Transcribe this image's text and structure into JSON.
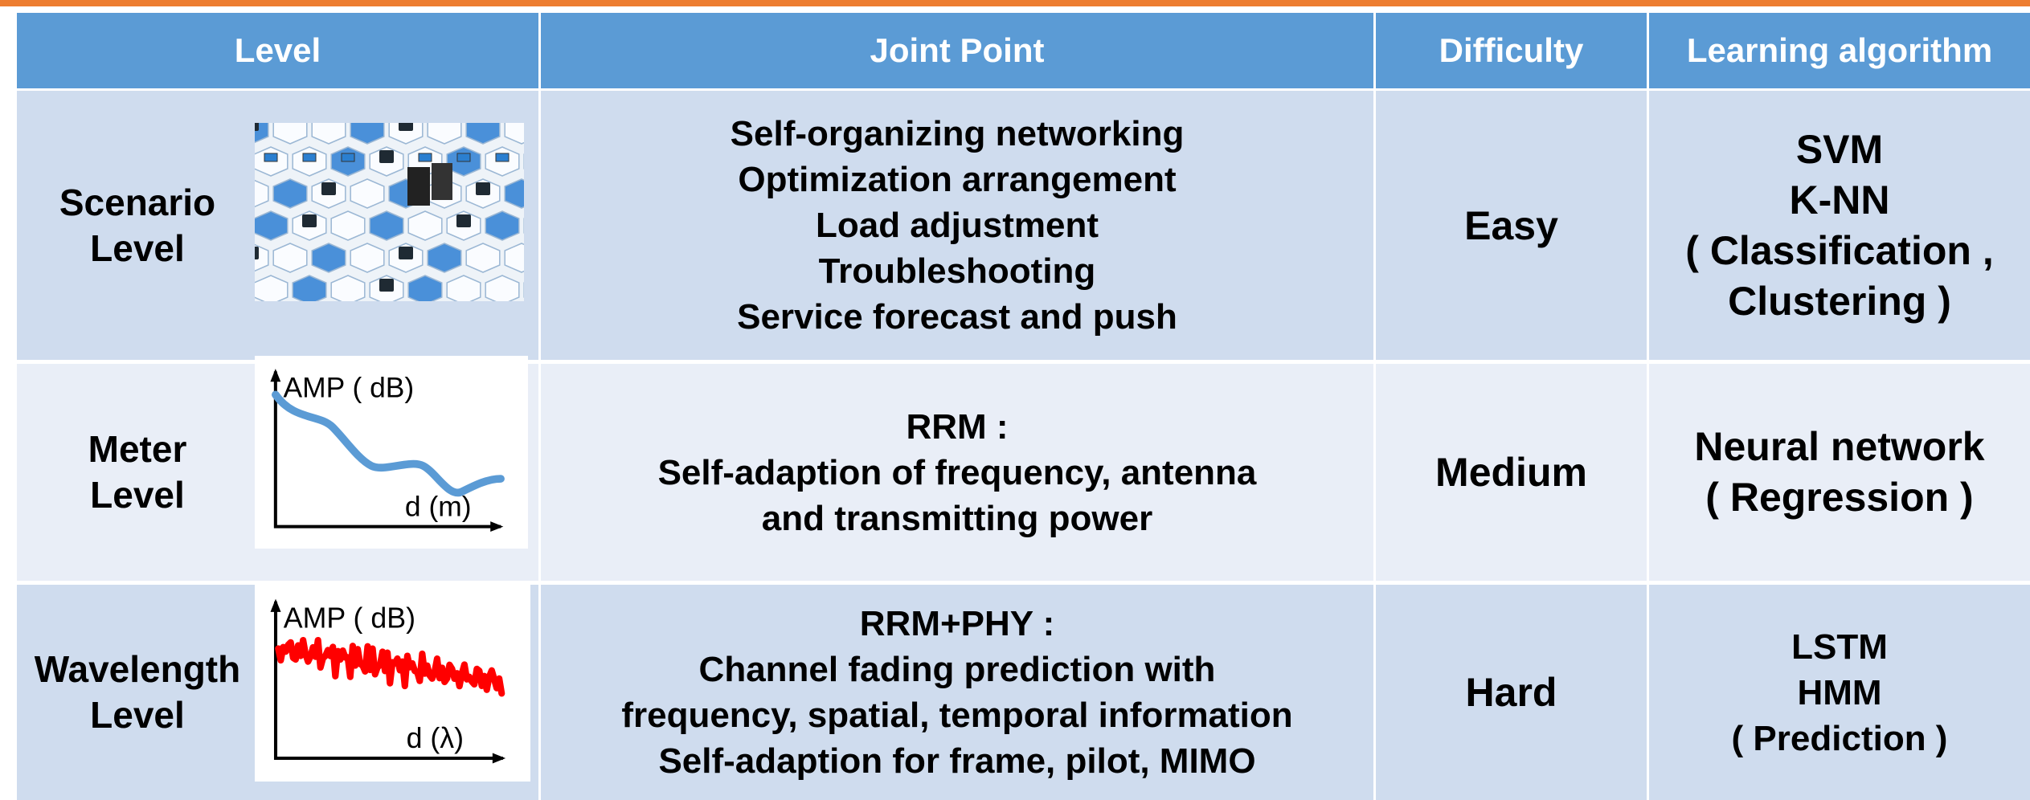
{
  "table": {
    "header": [
      "Level",
      "Joint Point",
      "Difficulty",
      "Learning algorithm"
    ],
    "rows": [
      {
        "level": [
          "Scenario",
          "Level"
        ],
        "joint_point": [
          "Self-organizing networking",
          "Optimization arrangement",
          "Load adjustment",
          "Troubleshooting",
          "Service forecast and push"
        ],
        "difficulty": "Easy",
        "algorithm": [
          "SVM",
          "K-NN",
          "( Classification ,",
          "Clustering )"
        ]
      },
      {
        "level": [
          "Meter",
          "Level"
        ],
        "image": {
          "y_label": "AMP ( dB)",
          "x_label": "d (m)"
        },
        "joint_point": [
          "RRM :",
          "Self-adaption of frequency, antenna",
          "and transmitting power"
        ],
        "difficulty": "Medium",
        "algorithm": [
          "Neural network",
          "( Regression )"
        ]
      },
      {
        "level": [
          "Wavelength",
          "Level"
        ],
        "image": {
          "y_label": "AMP ( dB)",
          "x_label": "d (λ)"
        },
        "joint_point": [
          "RRM+PHY :",
          "Channel fading prediction with",
          "frequency, spatial, temporal information",
          "Self-adaption for frame, pilot, MIMO"
        ],
        "difficulty": "Hard",
        "algorithm": [
          "LSTM",
          "HMM",
          "( Prediction )"
        ]
      }
    ]
  }
}
